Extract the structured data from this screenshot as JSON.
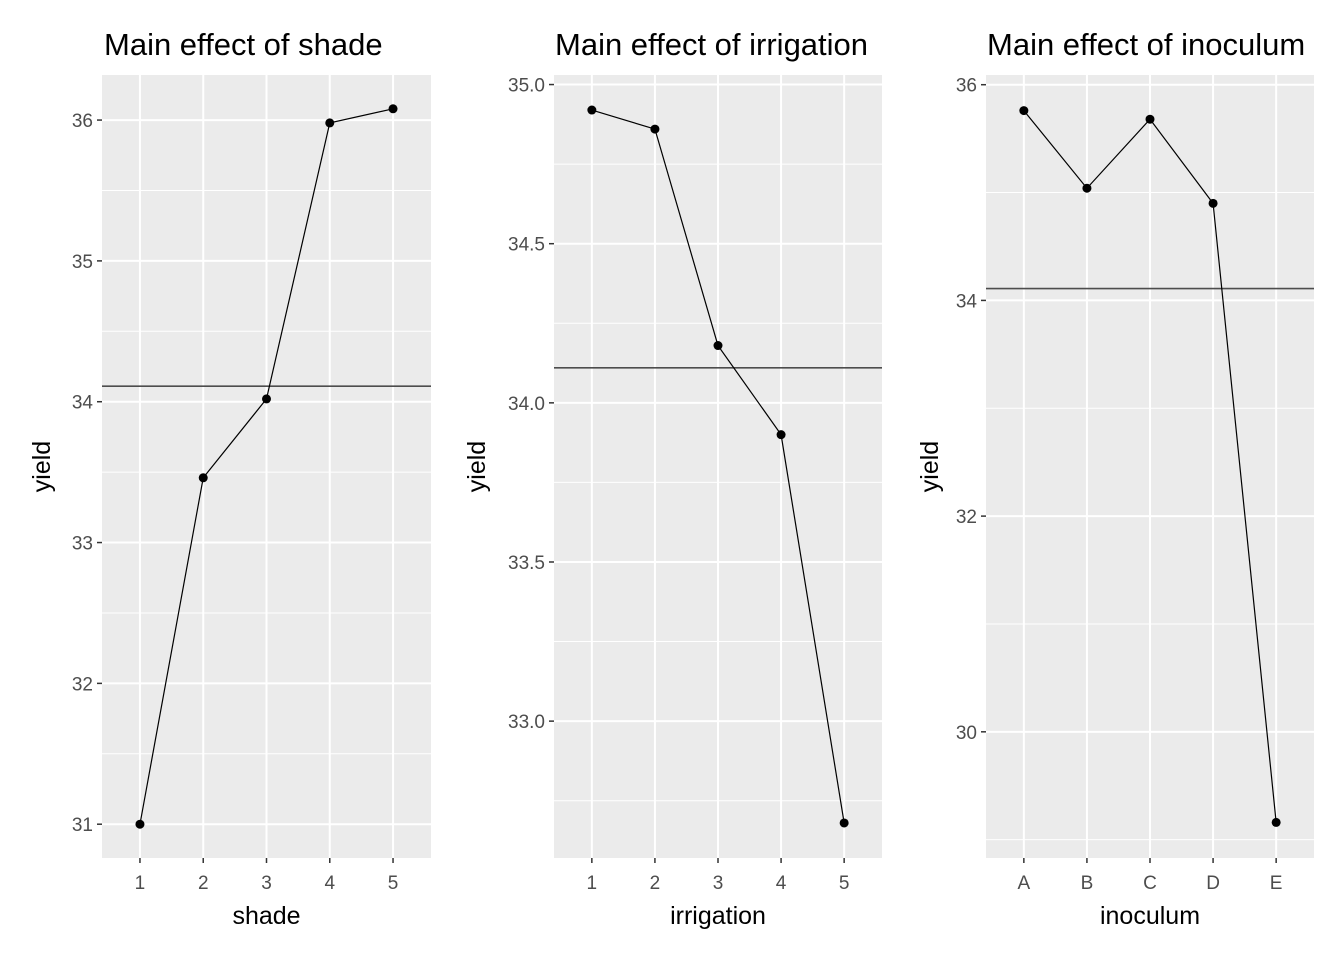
{
  "chart_data": [
    {
      "type": "line",
      "title": "Main effect of shade",
      "xlabel": "shade",
      "ylabel": "yield",
      "categories": [
        "1",
        "2",
        "3",
        "4",
        "5"
      ],
      "values": [
        31.0,
        33.46,
        34.02,
        35.98,
        36.08
      ],
      "reference_line": 34.11,
      "ylim": [
        30.76,
        36.32
      ],
      "yticks": [
        31,
        32,
        33,
        34,
        35,
        36
      ],
      "ytick_labels": [
        "31",
        "32",
        "33",
        "34",
        "35",
        "36"
      ],
      "grid": true,
      "background": "#ebebeb"
    },
    {
      "type": "line",
      "title": "Main effect of irrigation",
      "xlabel": "irrigation",
      "ylabel": "yield",
      "categories": [
        "1",
        "2",
        "3",
        "4",
        "5"
      ],
      "values": [
        34.92,
        34.86,
        34.18,
        33.9,
        32.68
      ],
      "reference_line": 34.11,
      "ylim": [
        32.57,
        35.03
      ],
      "yticks": [
        33.0,
        33.5,
        34.0,
        34.5,
        35.0
      ],
      "ytick_labels": [
        "33.0",
        "33.5",
        "34.0",
        "34.5",
        "35.0"
      ],
      "grid": true,
      "background": "#ebebeb"
    },
    {
      "type": "line",
      "title": "Main effect of inoculum",
      "xlabel": "inoculum",
      "ylabel": "yield",
      "categories": [
        "A",
        "B",
        "C",
        "D",
        "E"
      ],
      "values": [
        35.76,
        35.04,
        35.68,
        34.9,
        29.16
      ],
      "reference_line": 34.11,
      "ylim": [
        28.83,
        36.09
      ],
      "yticks": [
        30,
        32,
        34,
        36
      ],
      "ytick_labels": [
        "30",
        "32",
        "34",
        "36"
      ],
      "grid": true,
      "background": "#ebebeb"
    }
  ]
}
